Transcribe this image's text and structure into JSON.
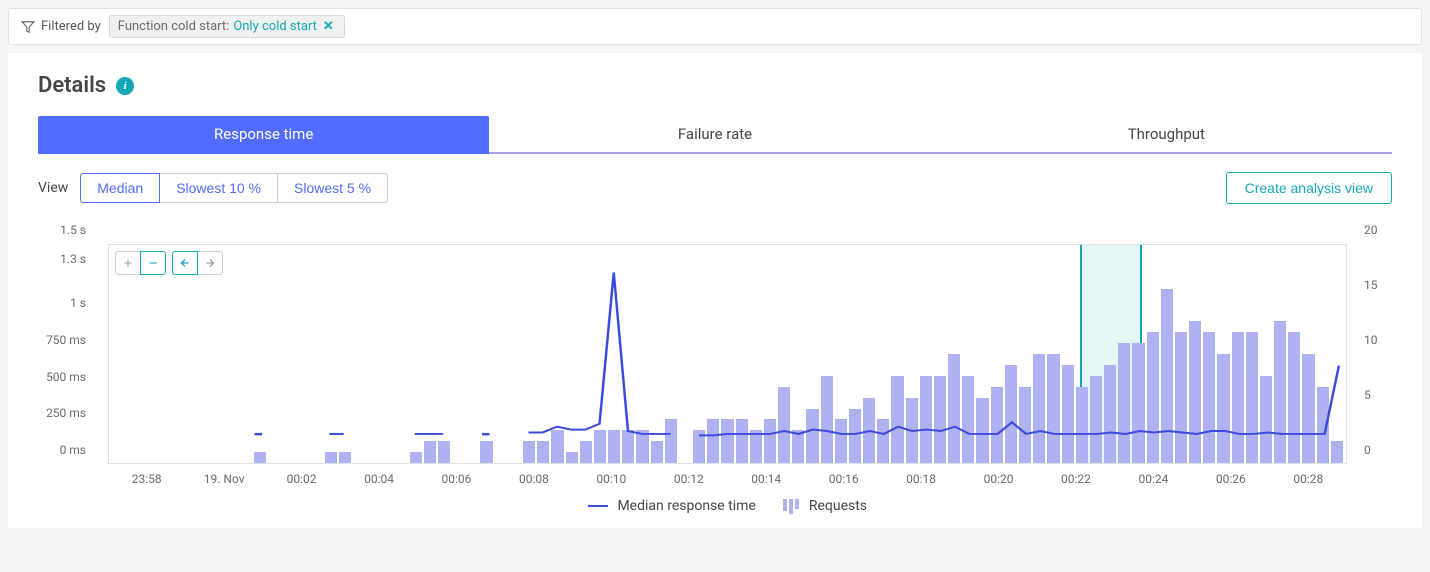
{
  "filter": {
    "label": "Filtered by",
    "key": "Function cold start:",
    "value": "Only cold start"
  },
  "section": {
    "title": "Details"
  },
  "tabs": {
    "items": [
      "Response time",
      "Failure rate",
      "Throughput"
    ],
    "active_index": 0
  },
  "view": {
    "label": "View",
    "options": [
      "Median",
      "Slowest 10 %",
      "Slowest 5 %"
    ],
    "active_index": 0
  },
  "actions": {
    "create_analysis": "Create analysis view"
  },
  "chart": {
    "type": "combo-bar-line",
    "background": "#ffffff",
    "border_color": "#e2e2e2",
    "bar_color": "#aeb2f0",
    "line_color": "#3b4bdc",
    "highlight": {
      "fill": "rgba(180,230,232,0.35)",
      "border": "#14a8b6",
      "start_pct": 78.5,
      "end_pct": 83.5
    },
    "y_left": {
      "ticks": [
        "0 ms",
        "250 ms",
        "500 ms",
        "750 ms",
        "1 s",
        "1.3 s",
        "1.5 s"
      ],
      "max": 1500
    },
    "y_right": {
      "ticks": [
        "0",
        "5",
        "10",
        "15",
        "20"
      ],
      "max": 20
    },
    "x_ticks": [
      "23:58",
      "19. Nov",
      "00:02",
      "00:04",
      "00:06",
      "00:08",
      "00:10",
      "00:12",
      "00:14",
      "00:16",
      "00:18",
      "00:20",
      "00:22",
      "00:24",
      "00:26",
      "00:28"
    ],
    "bars_requests": [
      0,
      0,
      0,
      0,
      0,
      0,
      0,
      0,
      0,
      0,
      1,
      0,
      0,
      0,
      0,
      1,
      1,
      0,
      0,
      0,
      0,
      1,
      2,
      2,
      0,
      0,
      2,
      0,
      0,
      2,
      2,
      3,
      1,
      2,
      3,
      3,
      3,
      3,
      2,
      4,
      0,
      3,
      4,
      4,
      4,
      3,
      4,
      7,
      3,
      5,
      8,
      4,
      5,
      6,
      4,
      8,
      6,
      8,
      8,
      10,
      8,
      6,
      7,
      9,
      7,
      10,
      10,
      9,
      7,
      8,
      9,
      11,
      11,
      12,
      16,
      12,
      13,
      12,
      10,
      12,
      12,
      8,
      13,
      12,
      10,
      7,
      2
    ],
    "line_response_ms": [
      null,
      null,
      null,
      null,
      null,
      null,
      null,
      null,
      null,
      null,
      200,
      null,
      null,
      null,
      null,
      200,
      200,
      null,
      null,
      null,
      null,
      200,
      200,
      200,
      null,
      null,
      200,
      null,
      null,
      210,
      210,
      250,
      230,
      230,
      270,
      1310,
      220,
      200,
      200,
      200,
      null,
      190,
      190,
      200,
      200,
      200,
      200,
      220,
      200,
      230,
      220,
      200,
      200,
      220,
      200,
      250,
      220,
      230,
      220,
      250,
      200,
      200,
      200,
      280,
      200,
      220,
      200,
      200,
      200,
      200,
      210,
      200,
      220,
      210,
      220,
      210,
      200,
      220,
      220,
      200,
      200,
      210,
      200,
      200,
      200,
      200,
      670
    ],
    "legend": {
      "line": "Median response time",
      "bars": "Requests"
    }
  }
}
